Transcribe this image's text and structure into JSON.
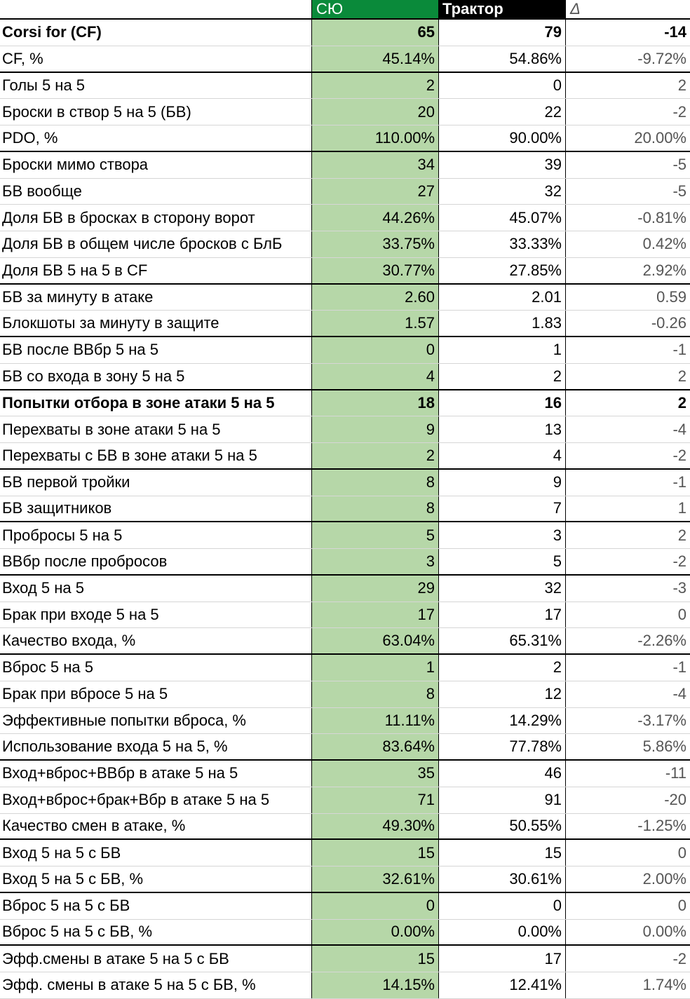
{
  "header": {
    "label": "",
    "syu": "СЮ",
    "traktor": "Трактор",
    "delta": "Δ"
  },
  "rows": [
    {
      "label": "Corsi for (CF)",
      "syu": "65",
      "traktor": "79",
      "delta": "-14",
      "bold": true,
      "group_end": false
    },
    {
      "label": "CF, %",
      "syu": "45.14%",
      "traktor": "54.86%",
      "delta": "-9.72%",
      "bold": false,
      "group_end": true
    },
    {
      "label": "Голы 5 на 5",
      "syu": "2",
      "traktor": "0",
      "delta": "2",
      "bold": false,
      "group_end": false
    },
    {
      "label": "Броски в створ 5 на 5 (БВ)",
      "syu": "20",
      "traktor": "22",
      "delta": "-2",
      "bold": false,
      "group_end": false
    },
    {
      "label": "PDO, %",
      "syu": "110.00%",
      "traktor": "90.00%",
      "delta": "20.00%",
      "bold": false,
      "group_end": true
    },
    {
      "label": "Броски мимо створа",
      "syu": "34",
      "traktor": "39",
      "delta": "-5",
      "bold": false,
      "group_end": false
    },
    {
      "label": "БВ вообще",
      "syu": "27",
      "traktor": "32",
      "delta": "-5",
      "bold": false,
      "group_end": false
    },
    {
      "label": "Доля БВ в бросках в сторону ворот",
      "syu": "44.26%",
      "traktor": "45.07%",
      "delta": "-0.81%",
      "bold": false,
      "group_end": false
    },
    {
      "label": "Доля БВ в общем числе бросков с БлБ",
      "syu": "33.75%",
      "traktor": "33.33%",
      "delta": "0.42%",
      "bold": false,
      "group_end": false
    },
    {
      "label": "Доля БВ 5 на 5 в CF",
      "syu": "30.77%",
      "traktor": "27.85%",
      "delta": "2.92%",
      "bold": false,
      "group_end": true
    },
    {
      "label": "БВ за минуту в атаке",
      "syu": "2.60",
      "traktor": "2.01",
      "delta": "0.59",
      "bold": false,
      "group_end": false
    },
    {
      "label": "Блокшоты за минуту в защите",
      "syu": "1.57",
      "traktor": "1.83",
      "delta": "-0.26",
      "bold": false,
      "group_end": true
    },
    {
      "label": "БВ после ВВбр 5 на 5",
      "syu": "0",
      "traktor": "1",
      "delta": "-1",
      "bold": false,
      "group_end": false
    },
    {
      "label": "БВ со входа в зону 5 на 5",
      "syu": "4",
      "traktor": "2",
      "delta": "2",
      "bold": false,
      "group_end": true
    },
    {
      "label": "Попытки отбора в зоне атаки 5 на 5",
      "syu": "18",
      "traktor": "16",
      "delta": "2",
      "bold": true,
      "group_end": false
    },
    {
      "label": "Перехваты в зоне атаки 5 на 5",
      "syu": "9",
      "traktor": "13",
      "delta": "-4",
      "bold": false,
      "group_end": false
    },
    {
      "label": "Перехваты с БВ в зоне атаки 5 на 5",
      "syu": "2",
      "traktor": "4",
      "delta": "-2",
      "bold": false,
      "group_end": true
    },
    {
      "label": "БВ первой тройки",
      "syu": "8",
      "traktor": "9",
      "delta": "-1",
      "bold": false,
      "group_end": false
    },
    {
      "label": "БВ защитников",
      "syu": "8",
      "traktor": "7",
      "delta": "1",
      "bold": false,
      "group_end": true
    },
    {
      "label": "Пробросы 5 на 5",
      "syu": "5",
      "traktor": "3",
      "delta": "2",
      "bold": false,
      "group_end": false
    },
    {
      "label": "ВВбр после пробросов",
      "syu": "3",
      "traktor": "5",
      "delta": "-2",
      "bold": false,
      "group_end": true
    },
    {
      "label": "Вход 5 на 5",
      "syu": "29",
      "traktor": "32",
      "delta": "-3",
      "bold": false,
      "group_end": false
    },
    {
      "label": "Брак при входе 5 на 5",
      "syu": "17",
      "traktor": "17",
      "delta": "0",
      "bold": false,
      "group_end": false
    },
    {
      "label": "Качество входа, %",
      "syu": "63.04%",
      "traktor": "65.31%",
      "delta": "-2.26%",
      "bold": false,
      "group_end": true
    },
    {
      "label": "Вброс 5 на 5",
      "syu": "1",
      "traktor": "2",
      "delta": "-1",
      "bold": false,
      "group_end": false
    },
    {
      "label": "Брак при вбросе 5 на 5",
      "syu": "8",
      "traktor": "12",
      "delta": "-4",
      "bold": false,
      "group_end": false
    },
    {
      "label": "Эффективные попытки вброса, %",
      "syu": "11.11%",
      "traktor": "14.29%",
      "delta": "-3.17%",
      "bold": false,
      "group_end": false
    },
    {
      "label": "Использование входа 5 на 5, %",
      "syu": "83.64%",
      "traktor": "77.78%",
      "delta": "5.86%",
      "bold": false,
      "group_end": true
    },
    {
      "label": "Вход+вброс+ВВбр в атаке 5 на 5",
      "syu": "35",
      "traktor": "46",
      "delta": "-11",
      "bold": false,
      "group_end": false
    },
    {
      "label": "Вход+вброс+брак+Вбр в атаке 5 на 5",
      "syu": "71",
      "traktor": "91",
      "delta": "-20",
      "bold": false,
      "group_end": false
    },
    {
      "label": "Качество смен в атаке, %",
      "syu": "49.30%",
      "traktor": "50.55%",
      "delta": "-1.25%",
      "bold": false,
      "group_end": true
    },
    {
      "label": "Вход 5 на 5 с БВ",
      "syu": "15",
      "traktor": "15",
      "delta": "0",
      "bold": false,
      "group_end": false
    },
    {
      "label": "Вход 5 на 5 с БВ, %",
      "syu": "32.61%",
      "traktor": "30.61%",
      "delta": "2.00%",
      "bold": false,
      "group_end": true
    },
    {
      "label": "Вброс 5 на 5 с БВ",
      "syu": "0",
      "traktor": "0",
      "delta": "0",
      "bold": false,
      "group_end": false
    },
    {
      "label": "Вброс 5 на 5 с БВ, %",
      "syu": "0.00%",
      "traktor": "0.00%",
      "delta": "0.00%",
      "bold": false,
      "group_end": true
    },
    {
      "label": "Эфф.смены в атаке 5 на 5 с БВ",
      "syu": "15",
      "traktor": "17",
      "delta": "-2",
      "bold": false,
      "group_end": false
    },
    {
      "label": "Эфф. смены в атаке 5 на 5 с БВ, %",
      "syu": "14.15%",
      "traktor": "12.41%",
      "delta": "1.74%",
      "bold": false,
      "group_end": false
    }
  ],
  "colors": {
    "syu_header": "#0a8a3a",
    "syu_cells": "#b6d7a8",
    "traktor_header": "#000000"
  }
}
